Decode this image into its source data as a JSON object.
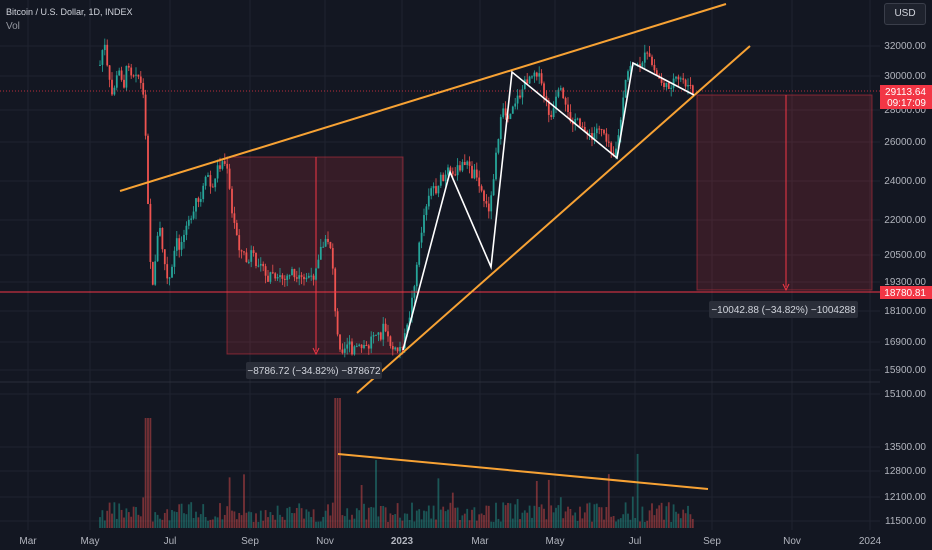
{
  "header": {
    "symbol": "Bitcoin / U.S. Dollar, 1D, INDEX",
    "volume_label": "Vol",
    "currency_button": "USD"
  },
  "colors": {
    "background": "#131722",
    "up": "#26a69a",
    "down": "#ef5350",
    "trendline": "#f7a234",
    "zigzag": "#ffffff",
    "level_line": "#f23645"
  },
  "chart_data": {
    "type": "candlestick",
    "y_ticks": [
      "32000.00",
      "30000.00",
      "28000.00",
      "26000.00",
      "24000.00",
      "22000.00",
      "20500.00",
      "19300.00",
      "18100.00",
      "16900.00",
      "15900.00",
      "15100.00",
      "13500.00",
      "12800.00",
      "12100.00",
      "11500.00"
    ],
    "x_ticks": [
      "Mar",
      "May",
      "Jul",
      "Sep",
      "Nov",
      "2023",
      "Mar",
      "May",
      "Jul",
      "Sep",
      "Nov",
      "2024"
    ],
    "current_price": "29113.64",
    "countdown": "09:17:09",
    "level_price": "18780.81",
    "measure_1": "−8786.72 (−34.82%) −878672",
    "measure_2": "−10042.88 (−34.82%) −1004288",
    "price_path": [
      [
        100,
        65
      ],
      [
        104,
        40
      ],
      [
        108,
        75
      ],
      [
        112,
        95
      ],
      [
        116,
        80
      ],
      [
        120,
        70
      ],
      [
        124,
        85
      ],
      [
        128,
        60
      ],
      [
        132,
        75
      ],
      [
        136,
        70
      ],
      [
        140,
        80
      ],
      [
        144,
        100
      ],
      [
        146,
        140
      ],
      [
        148,
        200
      ],
      [
        150,
        250
      ],
      [
        152,
        300
      ],
      [
        154,
        270
      ],
      [
        157,
        240
      ],
      [
        160,
        230
      ],
      [
        164,
        260
      ],
      [
        168,
        285
      ],
      [
        172,
        270
      ],
      [
        176,
        240
      ],
      [
        180,
        250
      ],
      [
        184,
        230
      ],
      [
        188,
        215
      ],
      [
        192,
        225
      ],
      [
        196,
        200
      ],
      [
        200,
        205
      ],
      [
        204,
        185
      ],
      [
        208,
        175
      ],
      [
        212,
        195
      ],
      [
        216,
        170
      ],
      [
        220,
        165
      ],
      [
        224,
        160
      ],
      [
        228,
        175
      ],
      [
        232,
        215
      ],
      [
        236,
        230
      ],
      [
        240,
        250
      ],
      [
        244,
        255
      ],
      [
        248,
        265
      ],
      [
        252,
        250
      ],
      [
        256,
        270
      ],
      [
        260,
        255
      ],
      [
        264,
        275
      ],
      [
        268,
        280
      ],
      [
        272,
        270
      ],
      [
        276,
        285
      ],
      [
        280,
        275
      ],
      [
        284,
        282
      ],
      [
        288,
        275
      ],
      [
        292,
        270
      ],
      [
        296,
        285
      ],
      [
        300,
        278
      ],
      [
        304,
        280
      ],
      [
        308,
        275
      ],
      [
        312,
        282
      ],
      [
        316,
        265
      ],
      [
        320,
        250
      ],
      [
        324,
        245
      ],
      [
        328,
        240
      ],
      [
        332,
        250
      ],
      [
        334,
        290
      ],
      [
        336,
        330
      ],
      [
        340,
        345
      ],
      [
        344,
        350
      ],
      [
        348,
        340
      ],
      [
        352,
        355
      ],
      [
        356,
        345
      ],
      [
        360,
        350
      ],
      [
        364,
        345
      ],
      [
        368,
        350
      ],
      [
        372,
        335
      ],
      [
        376,
        330
      ],
      [
        380,
        338
      ],
      [
        384,
        325
      ],
      [
        388,
        340
      ],
      [
        392,
        348
      ],
      [
        396,
        352
      ],
      [
        400,
        348
      ],
      [
        404,
        340
      ],
      [
        408,
        325
      ],
      [
        412,
        300
      ],
      [
        416,
        270
      ],
      [
        420,
        240
      ],
      [
        424,
        215
      ],
      [
        428,
        195
      ],
      [
        432,
        185
      ],
      [
        436,
        190
      ],
      [
        440,
        178
      ],
      [
        444,
        182
      ],
      [
        448,
        170
      ],
      [
        452,
        180
      ],
      [
        456,
        168
      ],
      [
        460,
        172
      ],
      [
        464,
        160
      ],
      [
        468,
        165
      ],
      [
        472,
        175
      ],
      [
        476,
        170
      ],
      [
        480,
        185
      ],
      [
        484,
        200
      ],
      [
        488,
        210
      ],
      [
        492,
        195
      ],
      [
        494,
        170
      ],
      [
        496,
        150
      ],
      [
        500,
        125
      ],
      [
        504,
        110
      ],
      [
        508,
        118
      ],
      [
        512,
        105
      ],
      [
        516,
        100
      ],
      [
        520,
        95
      ],
      [
        524,
        85
      ],
      [
        528,
        78
      ],
      [
        532,
        72
      ],
      [
        536,
        70
      ],
      [
        540,
        80
      ],
      [
        544,
        95
      ],
      [
        548,
        110
      ],
      [
        552,
        120
      ],
      [
        556,
        100
      ],
      [
        560,
        90
      ],
      [
        564,
        105
      ],
      [
        568,
        115
      ],
      [
        572,
        120
      ],
      [
        576,
        118
      ],
      [
        580,
        130
      ],
      [
        584,
        125
      ],
      [
        588,
        135
      ],
      [
        592,
        140
      ],
      [
        596,
        130
      ],
      [
        600,
        125
      ],
      [
        604,
        132
      ],
      [
        608,
        140
      ],
      [
        612,
        150
      ],
      [
        614,
        155
      ],
      [
        618,
        140
      ],
      [
        622,
        110
      ],
      [
        626,
        80
      ],
      [
        630,
        65
      ],
      [
        634,
        62
      ],
      [
        638,
        68
      ],
      [
        642,
        60
      ],
      [
        646,
        55
      ],
      [
        650,
        60
      ],
      [
        654,
        70
      ],
      [
        658,
        78
      ],
      [
        662,
        82
      ],
      [
        666,
        88
      ],
      [
        670,
        85
      ],
      [
        674,
        80
      ],
      [
        678,
        82
      ],
      [
        682,
        78
      ],
      [
        686,
        84
      ],
      [
        690,
        88
      ],
      [
        694,
        95
      ]
    ],
    "lines": {
      "upper_trend": [
        [
          120,
          191
        ],
        [
          726,
          4
        ]
      ],
      "lower_trend": [
        [
          357,
          393
        ],
        [
          750,
          46
        ]
      ],
      "volume_trend": [
        [
          338,
          454
        ],
        [
          708,
          489
        ]
      ],
      "level": [
        [
          0,
          292
        ],
        [
          880,
          292
        ]
      ],
      "current": [
        [
          0,
          91
        ],
        [
          880,
          91
        ]
      ],
      "zigzag": [
        [
          403,
          350
        ],
        [
          450,
          172
        ],
        [
          491,
          267
        ],
        [
          512,
          72
        ],
        [
          617,
          158
        ],
        [
          633,
          63
        ],
        [
          694,
          95
        ]
      ]
    },
    "boxes": [
      {
        "x1": 227,
        "y1": 157,
        "x2": 403,
        "y2": 354,
        "arrow_x": 316
      },
      {
        "x1": 697,
        "y1": 95,
        "x2": 872,
        "y2": 290,
        "arrow_x": 786
      }
    ]
  }
}
